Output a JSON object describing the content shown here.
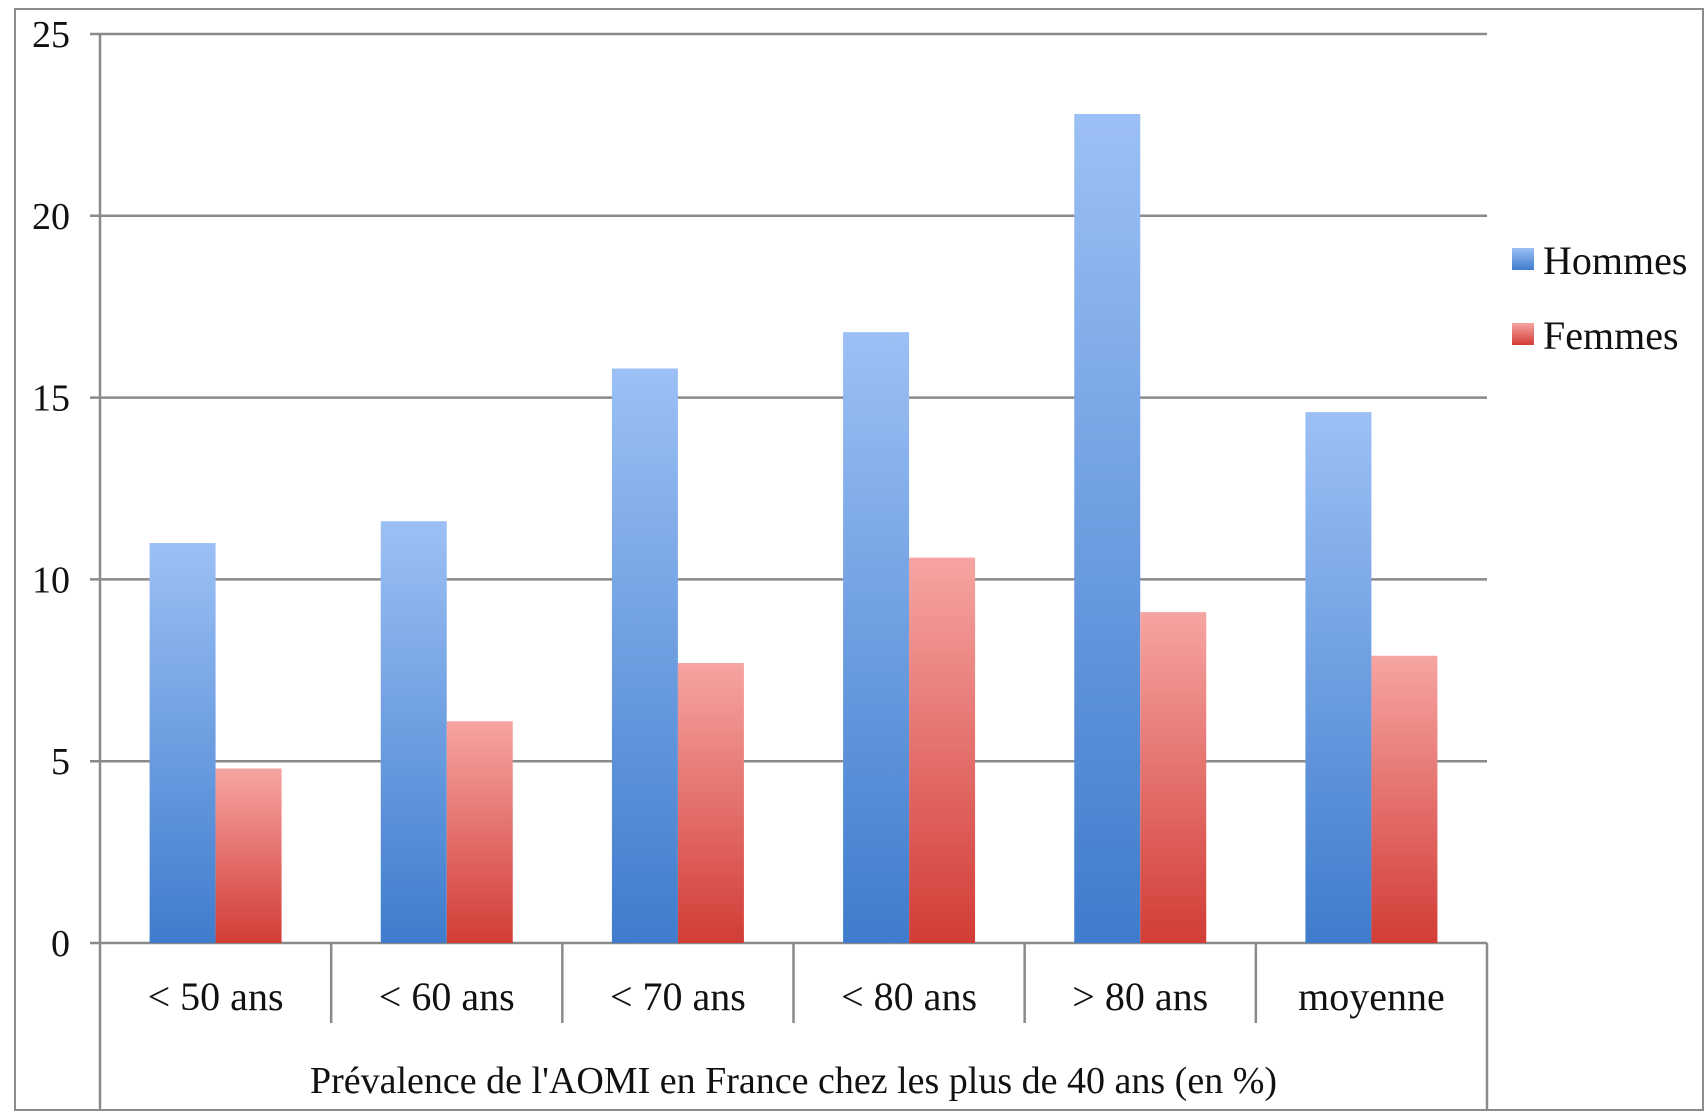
{
  "chart_data": {
    "type": "bar",
    "xlabel": "Prévalence de l'AOMI en France chez les plus de 40 ans (en %)",
    "categories": [
      "< 50 ans",
      "< 60 ans",
      "< 70 ans",
      "< 80 ans",
      "> 80 ans",
      "moyenne"
    ],
    "series": [
      {
        "name": "Hommes",
        "color": "#4f86d6",
        "values": [
          11.0,
          11.6,
          15.8,
          16.8,
          22.8,
          14.6
        ]
      },
      {
        "name": "Femmes",
        "color": "#d94545",
        "values": [
          4.8,
          6.1,
          7.7,
          10.6,
          9.1,
          7.9
        ]
      }
    ],
    "ylim": [
      0,
      25
    ],
    "yticks": [
      0,
      5,
      10,
      15,
      20,
      25
    ],
    "grid": true,
    "legend": "right"
  }
}
